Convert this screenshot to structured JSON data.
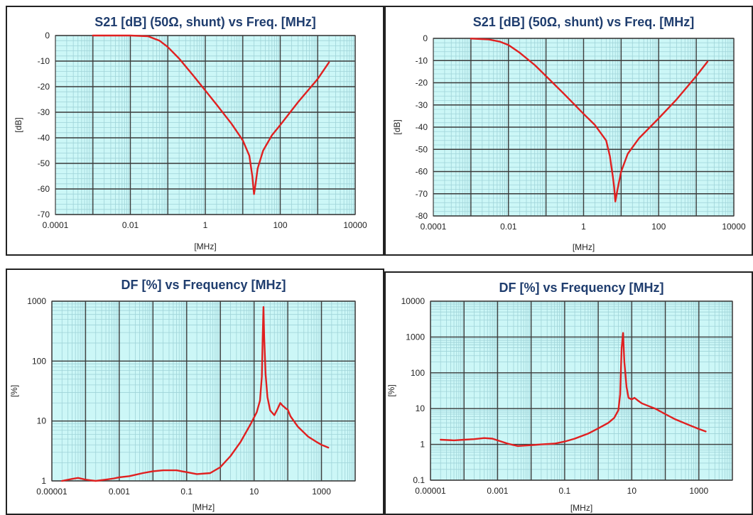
{
  "chart_data": [
    {
      "type": "line",
      "title": "S21 [dB] (50Ω, shunt) vs Freq. [MHz]",
      "xlabel": "[MHz]",
      "ylabel": "[dB]",
      "x_scale": "log",
      "xlim": [
        0.0001,
        10000
      ],
      "ylim": [
        -70,
        0
      ],
      "x_ticks": [
        "0.0001",
        "0.01",
        "1",
        "100",
        "10000"
      ],
      "y_ticks": [
        "0",
        "-10",
        "-20",
        "-30",
        "-40",
        "-50",
        "-60",
        "-70"
      ],
      "grid": true,
      "series": [
        {
          "color": "#e02020",
          "x": [
            0.001,
            0.01,
            0.03,
            0.06,
            0.1,
            0.2,
            0.5,
            1,
            2,
            5,
            10,
            15,
            18,
            19,
            20,
            22,
            25,
            35,
            60,
            100,
            300,
            1000,
            2000
          ],
          "y": [
            0,
            0,
            -0.3,
            -2,
            -4.5,
            -9,
            -16,
            -21.5,
            -27,
            -34.5,
            -41,
            -47,
            -55,
            -59,
            -62,
            -58,
            -52,
            -45,
            -39,
            -35,
            -26,
            -17,
            -10.5
          ]
        }
      ]
    },
    {
      "type": "line",
      "title": "S21 [dB] (50Ω, shunt) vs Freq. [MHz]",
      "xlabel": "[MHz]",
      "ylabel": "[dB]",
      "x_scale": "log",
      "xlim": [
        0.0001,
        10000
      ],
      "ylim": [
        -80,
        0
      ],
      "x_ticks": [
        "0.0001",
        "0.01",
        "1",
        "100",
        "10000"
      ],
      "y_ticks": [
        "0",
        "-10",
        "-20",
        "-30",
        "-40",
        "-50",
        "-60",
        "-70",
        "-80"
      ],
      "grid": true,
      "series": [
        {
          "color": "#e02020",
          "x": [
            0.001,
            0.003,
            0.006,
            0.01,
            0.02,
            0.05,
            0.1,
            0.3,
            1,
            2,
            4,
            5,
            6,
            6.5,
            7,
            8,
            10,
            15,
            30,
            100,
            300,
            1000,
            2000
          ],
          "y": [
            -0.1,
            -0.5,
            -1.5,
            -3,
            -6.5,
            -12,
            -17,
            -25,
            -34,
            -39,
            -46,
            -53,
            -62,
            -67,
            -73.5,
            -68,
            -60,
            -52,
            -45,
            -36,
            -27.5,
            -17,
            -10.5
          ]
        }
      ]
    },
    {
      "type": "line",
      "title": "DF [%] vs Frequency [MHz]",
      "xlabel": "[MHz]",
      "ylabel": "[%]",
      "x_scale": "log",
      "y_scale": "log",
      "xlim": [
        1e-05,
        10000
      ],
      "ylim": [
        1,
        1000
      ],
      "x_ticks": [
        "0.00001",
        "0.001",
        "0.1",
        "10",
        "1000"
      ],
      "y_ticks": [
        "1000",
        "100",
        "10",
        "1"
      ],
      "grid": true,
      "series": [
        {
          "color": "#e02020",
          "x": [
            2e-05,
            4e-05,
            6e-05,
            0.0001,
            0.0002,
            0.0004,
            0.0007,
            0.001,
            0.002,
            0.005,
            0.01,
            0.02,
            0.05,
            0.1,
            0.2,
            0.5,
            1,
            2,
            4,
            8,
            12,
            15,
            17,
            18,
            19,
            20,
            22,
            25,
            30,
            40,
            50,
            60,
            70,
            80,
            90,
            100,
            120,
            200,
            400,
            700,
            1000,
            1600
          ],
          "y": [
            1.0,
            1.08,
            1.12,
            1.05,
            1.0,
            1.05,
            1.1,
            1.15,
            1.2,
            1.35,
            1.45,
            1.5,
            1.5,
            1.4,
            1.3,
            1.35,
            1.7,
            2.6,
            4.5,
            9,
            14,
            22,
            55,
            250,
            800,
            250,
            60,
            25,
            15,
            12.5,
            16,
            20,
            18,
            17,
            16,
            15.5,
            12,
            8,
            5.5,
            4.5,
            4,
            3.6
          ]
        }
      ]
    },
    {
      "type": "line",
      "title": "DF [%] vs Frequency [MHz]",
      "xlabel": "[MHz]",
      "ylabel": "[%]",
      "x_scale": "log",
      "y_scale": "log",
      "xlim": [
        1e-05,
        10000
      ],
      "ylim": [
        0.1,
        10000
      ],
      "x_ticks": [
        "0.00001",
        "0.001",
        "0.1",
        "10",
        "1000"
      ],
      "y_ticks": [
        "10000",
        "1000",
        "100",
        "10",
        "1",
        "0.1"
      ],
      "grid": true,
      "series": [
        {
          "color": "#e02020",
          "x": [
            2e-05,
            5e-05,
            0.0001,
            0.0002,
            0.0004,
            0.0007,
            0.001,
            0.002,
            0.004,
            0.01,
            0.02,
            0.05,
            0.1,
            0.2,
            0.5,
            1,
            2,
            3,
            4,
            4.5,
            5,
            5.5,
            6,
            7,
            8,
            10,
            12,
            15,
            20,
            30,
            50,
            100,
            200,
            500,
            1000,
            1600
          ],
          "y": [
            1.35,
            1.3,
            1.35,
            1.4,
            1.5,
            1.45,
            1.3,
            1.05,
            0.9,
            0.95,
            1.0,
            1.05,
            1.2,
            1.45,
            2.0,
            2.8,
            4.0,
            5.5,
            9,
            25,
            500,
            1300,
            200,
            40,
            20,
            18,
            20,
            17,
            14,
            12,
            10,
            7,
            5,
            3.5,
            2.7,
            2.3
          ]
        }
      ]
    }
  ]
}
